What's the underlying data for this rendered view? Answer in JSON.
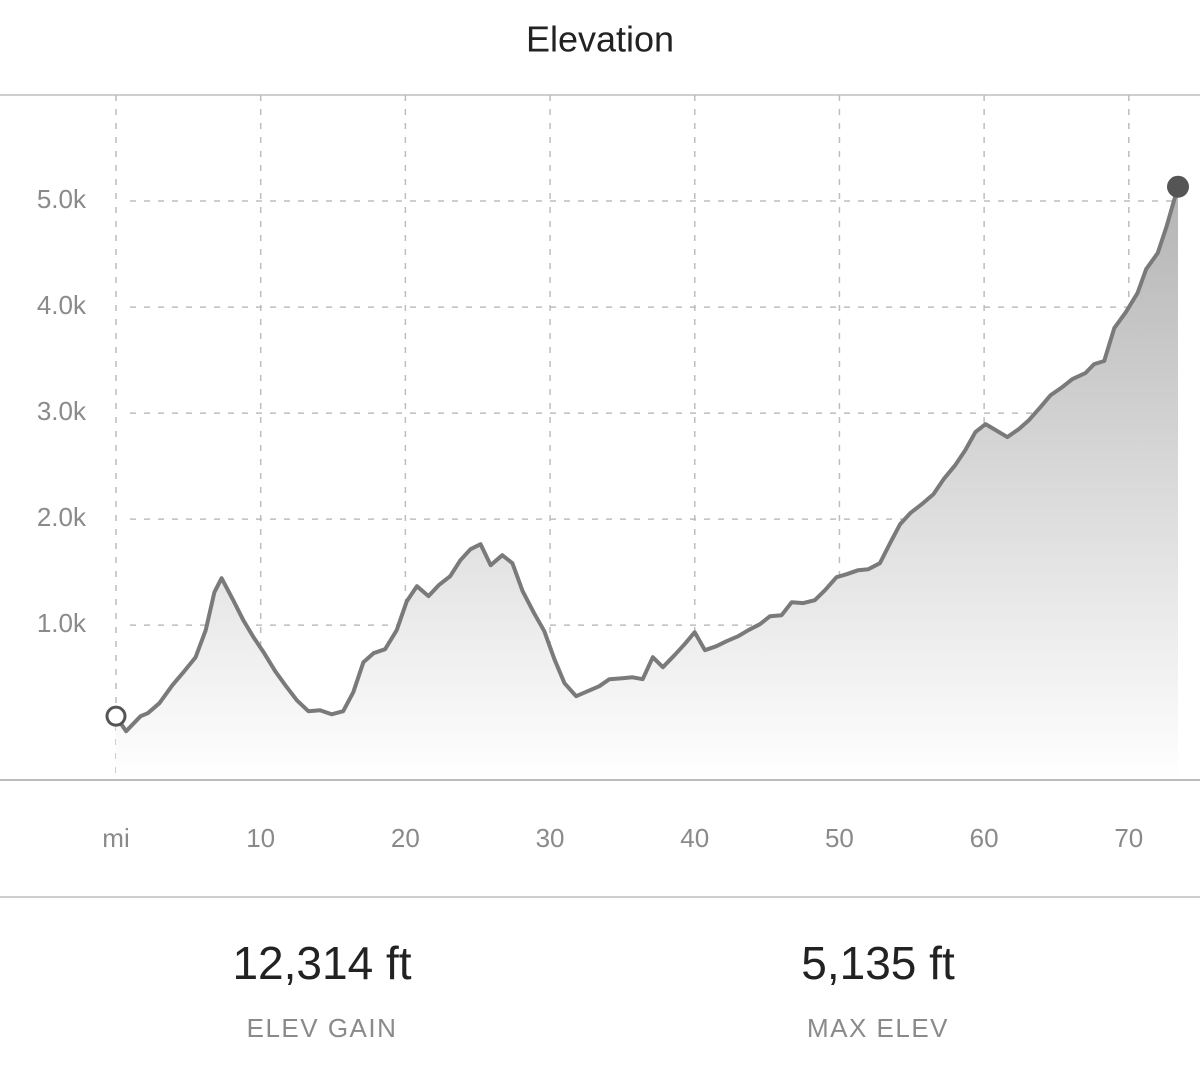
{
  "chart_data": {
    "type": "area",
    "title": "Elevation",
    "x": [
      0,
      0.7,
      1.7,
      2.2,
      3.0,
      3.9,
      4.6,
      5.5,
      6.2,
      6.8,
      7.3,
      8.1,
      8.8,
      9.5,
      10.2,
      11.0,
      11.7,
      12.5,
      13.3,
      14.1,
      14.9,
      15.7,
      16.4,
      17.1,
      17.8,
      18.6,
      19.4,
      20.1,
      20.8,
      21.6,
      22.3,
      23.1,
      23.8,
      24.5,
      25.2,
      25.9,
      26.7,
      27.4,
      28.1,
      28.9,
      29.6,
      30.3,
      31.0,
      31.8,
      32.6,
      33.4,
      34.1,
      35.0,
      35.7,
      36.4,
      37.1,
      37.8,
      38.6,
      39.3,
      40.0,
      40.7,
      41.5,
      42.2,
      43.0,
      43.7,
      44.5,
      45.2,
      46.0,
      46.7,
      47.5,
      48.3,
      49.0,
      49.8,
      50.5,
      51.3,
      52.0,
      52.8,
      53.5,
      54.2,
      54.9,
      55.7,
      56.5,
      57.2,
      58.0,
      58.7,
      59.4,
      60.1,
      60.8,
      61.6,
      62.4,
      63.1,
      63.9,
      64.6,
      65.4,
      66.1,
      67.0,
      67.6,
      68.3,
      69.0,
      69.8,
      70.6,
      71.2,
      72.0,
      72.6,
      73.4
    ],
    "values": [
      142,
      0,
      142,
      170,
      264,
      434,
      547,
      698,
      953,
      1311,
      1443,
      1236,
      1047,
      887,
      745,
      566,
      434,
      292,
      189,
      198,
      160,
      189,
      368,
      651,
      736,
      774,
      953,
      1226,
      1368,
      1274,
      1377,
      1462,
      1613,
      1717,
      1764,
      1566,
      1660,
      1585,
      1321,
      1113,
      943,
      679,
      453,
      330,
      377,
      425,
      491,
      500,
      509,
      491,
      698,
      604,
      717,
      821,
      934,
      764,
      802,
      849,
      896,
      953,
      1009,
      1085,
      1094,
      1217,
      1208,
      1236,
      1330,
      1453,
      1481,
      1519,
      1528,
      1585,
      1774,
      1953,
      2057,
      2142,
      2236,
      2377,
      2509,
      2651,
      2821,
      2896,
      2840,
      2774,
      2849,
      2934,
      3057,
      3170,
      3245,
      3321,
      3377,
      3462,
      3491,
      3802,
      3953,
      4132,
      4358,
      4509,
      4755,
      5135
    ],
    "color": "#7a7a7a",
    "xlim": [
      0,
      73.4
    ],
    "xticks": [
      {
        "value": 0,
        "label": "mi"
      },
      10,
      20,
      30,
      40,
      50,
      60,
      70
    ],
    "ylim": [
      -460,
      6000
    ],
    "yticks": [
      {
        "value": 0,
        "label": null
      },
      {
        "value": 1000,
        "label": "1.0k"
      },
      {
        "value": 2000,
        "label": "2.0k"
      },
      {
        "value": 3000,
        "label": "3.0k"
      },
      {
        "value": 4000,
        "label": "4.0k"
      },
      {
        "value": 5000,
        "label": "5.0k"
      }
    ],
    "grid": true,
    "stats": [
      {
        "value": "12,314 ft",
        "label": "ELEV GAIN"
      },
      {
        "value": "5,135 ft",
        "label": "MAX ELEV"
      }
    ]
  }
}
